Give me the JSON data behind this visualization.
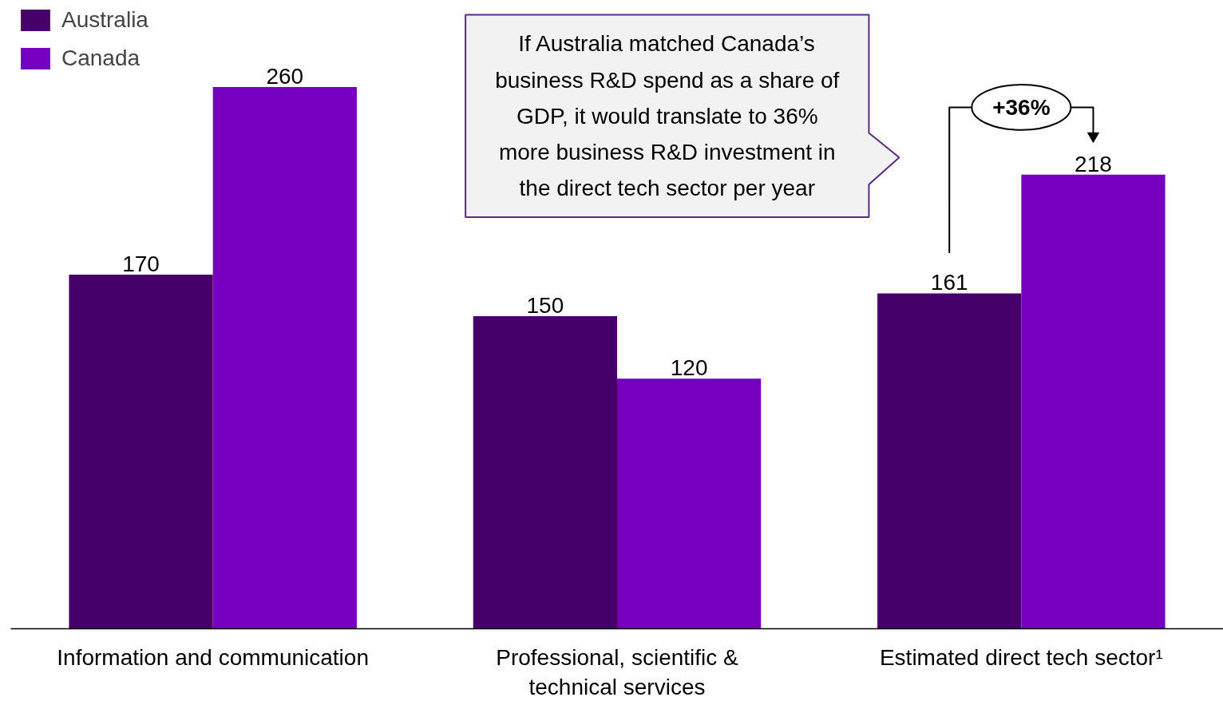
{
  "chart_data": {
    "type": "bar",
    "categories": [
      "Information and communication",
      "Professional, scientific & technical services",
      "Estimated direct tech sector¹"
    ],
    "series": [
      {
        "name": "Australia",
        "color": "#450069",
        "values": [
          170,
          150,
          161
        ]
      },
      {
        "name": "Canada",
        "color": "#7500c0",
        "values": [
          260,
          120,
          218
        ]
      }
    ],
    "data_labels": true,
    "legend": "top left",
    "grid": false,
    "annotations": [
      "If Australia matched Canada’s business R&D spend as a share of GDP, it would translate to 36% more business R&D investment in the direct tech sector per year",
      "+36%"
    ]
  }
}
